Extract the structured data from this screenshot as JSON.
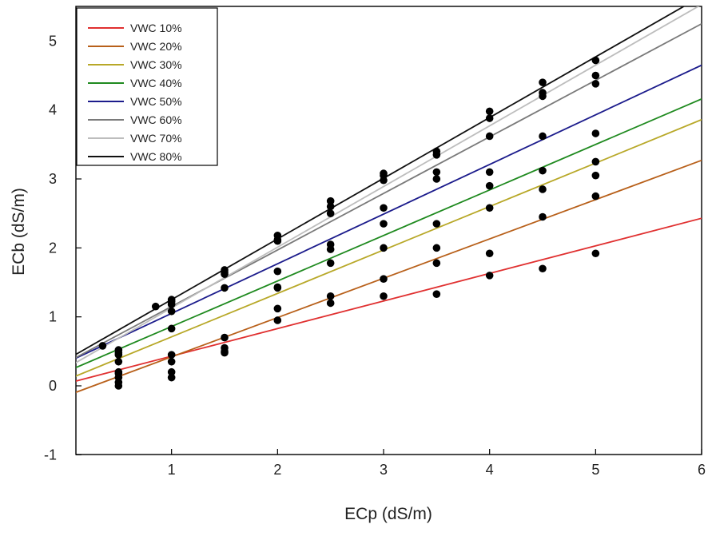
{
  "chart_data": {
    "type": "scatter",
    "title": "",
    "xlabel": "ECp (dS/m)",
    "ylabel": "ECb (dS/m)",
    "xlim": [
      0,
      6
    ],
    "ylim": [
      -1,
      5.5
    ],
    "xticks": [
      1,
      2,
      3,
      4,
      5,
      6
    ],
    "yticks": [
      -1,
      0,
      1,
      2,
      3,
      4,
      5
    ],
    "grid": false,
    "legend_position": "top-left",
    "series": [
      {
        "name": "VWC 10%",
        "color": "#e03030",
        "fit": {
          "slope": 0.4,
          "intercept": 0.03
        },
        "points": [
          [
            0.5,
            0.05
          ],
          [
            0.5,
            0.12
          ],
          [
            1,
            0.35
          ],
          [
            1.5,
            0.5
          ],
          [
            2,
            0.95
          ],
          [
            2.5,
            1.2
          ],
          [
            3,
            1.3
          ],
          [
            3.5,
            1.33
          ],
          [
            4,
            1.6
          ],
          [
            4.5,
            1.7
          ],
          [
            5,
            1.92
          ]
        ]
      },
      {
        "name": "VWC 20%",
        "color": "#b8601a",
        "fit": {
          "slope": 0.57,
          "intercept": -0.15
        },
        "points": [
          [
            0.5,
            0.0
          ],
          [
            0.5,
            0.2
          ],
          [
            1,
            0.12
          ],
          [
            1,
            0.2
          ],
          [
            1.5,
            0.48
          ],
          [
            2,
            1.12
          ],
          [
            2.5,
            1.3
          ],
          [
            3,
            1.55
          ],
          [
            3.5,
            1.78
          ],
          [
            4,
            1.92
          ],
          [
            4.5,
            2.45
          ],
          [
            5,
            2.75
          ]
        ]
      },
      {
        "name": "VWC 30%",
        "color": "#b8a828",
        "fit": {
          "slope": 0.63,
          "intercept": 0.08
        },
        "points": [
          [
            0.5,
            0.18
          ],
          [
            1,
            0.45
          ],
          [
            1.5,
            0.55
          ],
          [
            2,
            1.42
          ],
          [
            2.5,
            1.78
          ],
          [
            3,
            2.0
          ],
          [
            3.5,
            2.0
          ],
          [
            4,
            2.58
          ],
          [
            4.5,
            2.85
          ],
          [
            5,
            3.05
          ]
        ]
      },
      {
        "name": "VWC 40%",
        "color": "#1f8a1f",
        "fit": {
          "slope": 0.66,
          "intercept": 0.2
        },
        "points": [
          [
            0.5,
            0.35
          ],
          [
            1,
            0.83
          ],
          [
            1.5,
            0.7
          ],
          [
            2,
            1.43
          ],
          [
            2.5,
            1.98
          ],
          [
            3,
            2.35
          ],
          [
            3.5,
            2.35
          ],
          [
            4,
            2.9
          ],
          [
            4.5,
            3.12
          ],
          [
            5,
            3.25
          ]
        ]
      },
      {
        "name": "VWC 50%",
        "color": "#1c1c8c",
        "fit": {
          "slope": 0.72,
          "intercept": 0.33
        },
        "points": [
          [
            0.5,
            0.45
          ],
          [
            1,
            1.08
          ],
          [
            1.5,
            1.42
          ],
          [
            2,
            1.66
          ],
          [
            2.5,
            2.05
          ],
          [
            3,
            2.58
          ],
          [
            3.5,
            3.0
          ],
          [
            4,
            3.1
          ],
          [
            4.5,
            3.62
          ],
          [
            5,
            3.66
          ]
        ]
      },
      {
        "name": "VWC 60%",
        "color": "#7a7a7a",
        "fit": {
          "slope": 0.82,
          "intercept": 0.33
        },
        "points": [
          [
            0.5,
            0.48
          ],
          [
            1,
            1.18
          ],
          [
            1.5,
            1.62
          ],
          [
            2,
            2.1
          ],
          [
            2.5,
            2.5
          ],
          [
            3,
            2.98
          ],
          [
            3.5,
            3.1
          ],
          [
            4,
            3.62
          ],
          [
            4.5,
            4.2
          ],
          [
            5,
            4.38
          ]
        ]
      },
      {
        "name": "VWC 70%",
        "color": "#bdbdbd",
        "fit": {
          "slope": 0.88,
          "intercept": 0.25
        },
        "points": [
          [
            0.5,
            0.52
          ],
          [
            1,
            1.22
          ],
          [
            1.5,
            1.65
          ],
          [
            2,
            2.12
          ],
          [
            2.5,
            2.6
          ],
          [
            3,
            3.05
          ],
          [
            3.5,
            3.35
          ],
          [
            4,
            3.88
          ],
          [
            4.5,
            4.25
          ],
          [
            5,
            4.5
          ]
        ]
      },
      {
        "name": "VWC 80%",
        "color": "#111111",
        "fit": {
          "slope": 0.88,
          "intercept": 0.37
        },
        "points": [
          [
            0.35,
            0.58
          ],
          [
            0.85,
            1.15
          ],
          [
            1,
            1.25
          ],
          [
            1.5,
            1.68
          ],
          [
            2,
            2.18
          ],
          [
            2.5,
            2.68
          ],
          [
            3,
            3.08
          ],
          [
            3.5,
            3.4
          ],
          [
            4,
            3.98
          ],
          [
            4.5,
            4.4
          ],
          [
            5,
            4.72
          ]
        ]
      }
    ]
  }
}
